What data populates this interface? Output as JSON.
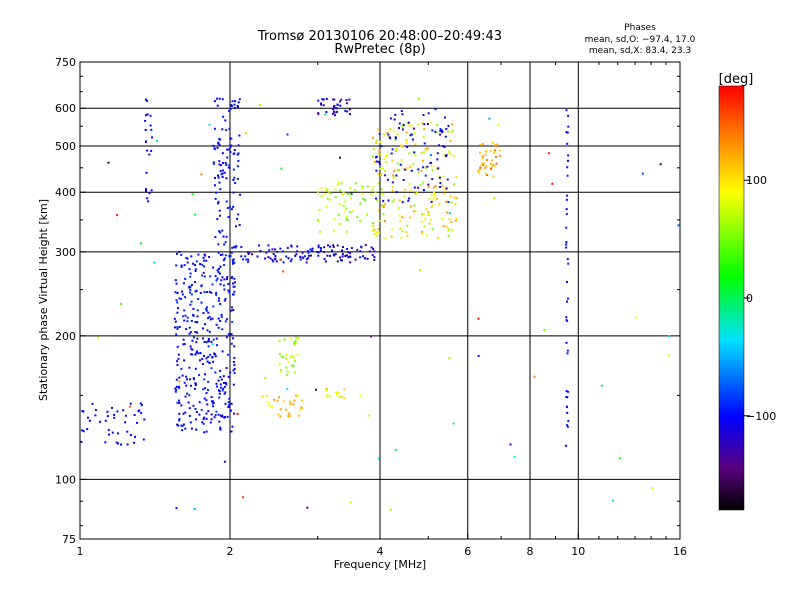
{
  "header": {
    "title_line1": "Tromsø 20130106 20:48:00–20:49:43",
    "title_line2": "RwPretec (8p)",
    "stats_title": "Phases",
    "stats_o": "mean, sd,O: −97.4, 17.0",
    "stats_x": "mean, sd,X:  83.4, 23.3"
  },
  "colorbar": {
    "unit_label": "[deg]",
    "range": [
      -180,
      180
    ],
    "ticks": [
      {
        "value": 100,
        "label": "100"
      },
      {
        "value": 0,
        "label": "0"
      },
      {
        "value": -100,
        "label": "−100"
      }
    ]
  },
  "chart_data": {
    "type": "scatter",
    "xlabel": "Frequency [MHz]",
    "ylabel": "Stationary phase Virtual Height [km]",
    "xscale": "log",
    "yscale": "log",
    "xlim": [
      1,
      16
    ],
    "ylim": [
      75,
      750
    ],
    "x_ticks": [
      {
        "value": 1,
        "label": "1"
      },
      {
        "value": 2,
        "label": "2"
      },
      {
        "value": 4,
        "label": "4"
      },
      {
        "value": 6,
        "label": "6"
      },
      {
        "value": 8,
        "label": "8"
      },
      {
        "value": 10,
        "label": "10"
      },
      {
        "value": 16,
        "label": "16"
      }
    ],
    "y_ticks": [
      {
        "value": 75,
        "label": "75"
      },
      {
        "value": 100,
        "label": "100"
      },
      {
        "value": 200,
        "label": "200"
      },
      {
        "value": 300,
        "label": "300"
      },
      {
        "value": 400,
        "label": "400"
      },
      {
        "value": 500,
        "label": "500"
      },
      {
        "value": 600,
        "label": "600"
      },
      {
        "value": 750,
        "label": "750"
      }
    ],
    "grid_x": [
      2,
      4,
      6,
      8,
      10
    ],
    "grid_y": [
      100,
      200,
      300,
      400,
      500,
      600
    ],
    "color_variable": "phase [deg]",
    "clusters": [
      {
        "f": [
          1.0,
          1.35
        ],
        "h": [
          118,
          145
        ],
        "phase": [
          -110,
          -95
        ],
        "n": 45
      },
      {
        "f": [
          1.55,
          2.05
        ],
        "h": [
          125,
          300
        ],
        "phase": [
          -115,
          -85
        ],
        "n": 380
      },
      {
        "f": [
          1.85,
          2.1
        ],
        "h": [
          300,
          630
        ],
        "phase": [
          -110,
          -90
        ],
        "n": 110
      },
      {
        "f": [
          1.35,
          1.4
        ],
        "h": [
          380,
          640
        ],
        "phase": [
          -110,
          -95
        ],
        "n": 22
      },
      {
        "f": [
          2.1,
          3.9
        ],
        "h": [
          285,
          310
        ],
        "phase": [
          -140,
          -90
        ],
        "n": 120
      },
      {
        "f": [
          2.3,
          2.8
        ],
        "h": [
          135,
          150
        ],
        "phase": [
          80,
          130
        ],
        "n": 30
      },
      {
        "f": [
          2.5,
          2.75
        ],
        "h": [
          165,
          200
        ],
        "phase": [
          40,
          90
        ],
        "n": 30
      },
      {
        "f": [
          3.0,
          3.5
        ],
        "h": [
          580,
          630
        ],
        "phase": [
          -140,
          -100
        ],
        "n": 35
      },
      {
        "f": [
          3.0,
          3.9
        ],
        "h": [
          330,
          420
        ],
        "phase": [
          40,
          100
        ],
        "n": 60
      },
      {
        "f": [
          3.1,
          3.4
        ],
        "h": [
          148,
          155
        ],
        "phase": [
          70,
          110
        ],
        "n": 15
      },
      {
        "f": [
          3.85,
          5.7
        ],
        "h": [
          320,
          560
        ],
        "phase": [
          50,
          130
        ],
        "n": 200
      },
      {
        "f": [
          3.9,
          5.5
        ],
        "h": [
          380,
          600
        ],
        "phase": [
          -130,
          -90
        ],
        "n": 90
      },
      {
        "f": [
          6.3,
          7.0
        ],
        "h": [
          430,
          510
        ],
        "phase": [
          100,
          150
        ],
        "n": 40
      },
      {
        "f": [
          9.45,
          9.55
        ],
        "h": [
          112,
          600
        ],
        "phase": [
          -110,
          -90
        ],
        "n": 40
      },
      {
        "f": [
          1.0,
          16.0
        ],
        "h": [
          80,
          640
        ],
        "phase": [
          -180,
          180
        ],
        "n": 70
      }
    ]
  }
}
